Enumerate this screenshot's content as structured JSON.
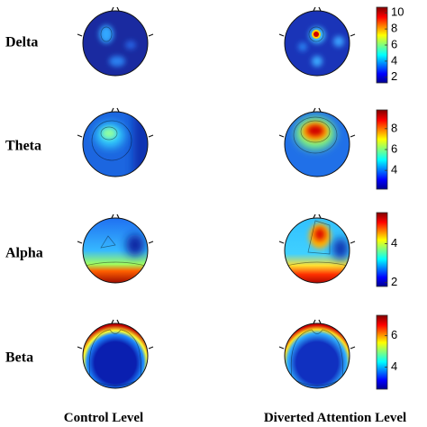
{
  "columns": [
    "Control Level",
    "Diverted Attention Level"
  ],
  "rows": [
    {
      "label": "Delta",
      "colorbar": {
        "lim": [
          1.3,
          10.7
        ],
        "ticks": [
          2,
          4,
          6,
          8,
          10
        ]
      }
    },
    {
      "label": "Theta",
      "colorbar": {
        "lim": [
          2.2,
          9.8
        ],
        "ticks": [
          4,
          6,
          8
        ]
      }
    },
    {
      "label": "Alpha",
      "colorbar": {
        "lim": [
          1.8,
          5.6
        ],
        "ticks": [
          2,
          4
        ]
      }
    },
    {
      "label": "Beta",
      "colorbar": {
        "lim": [
          2.6,
          7.3
        ],
        "ticks": [
          4,
          6
        ]
      }
    }
  ]
}
